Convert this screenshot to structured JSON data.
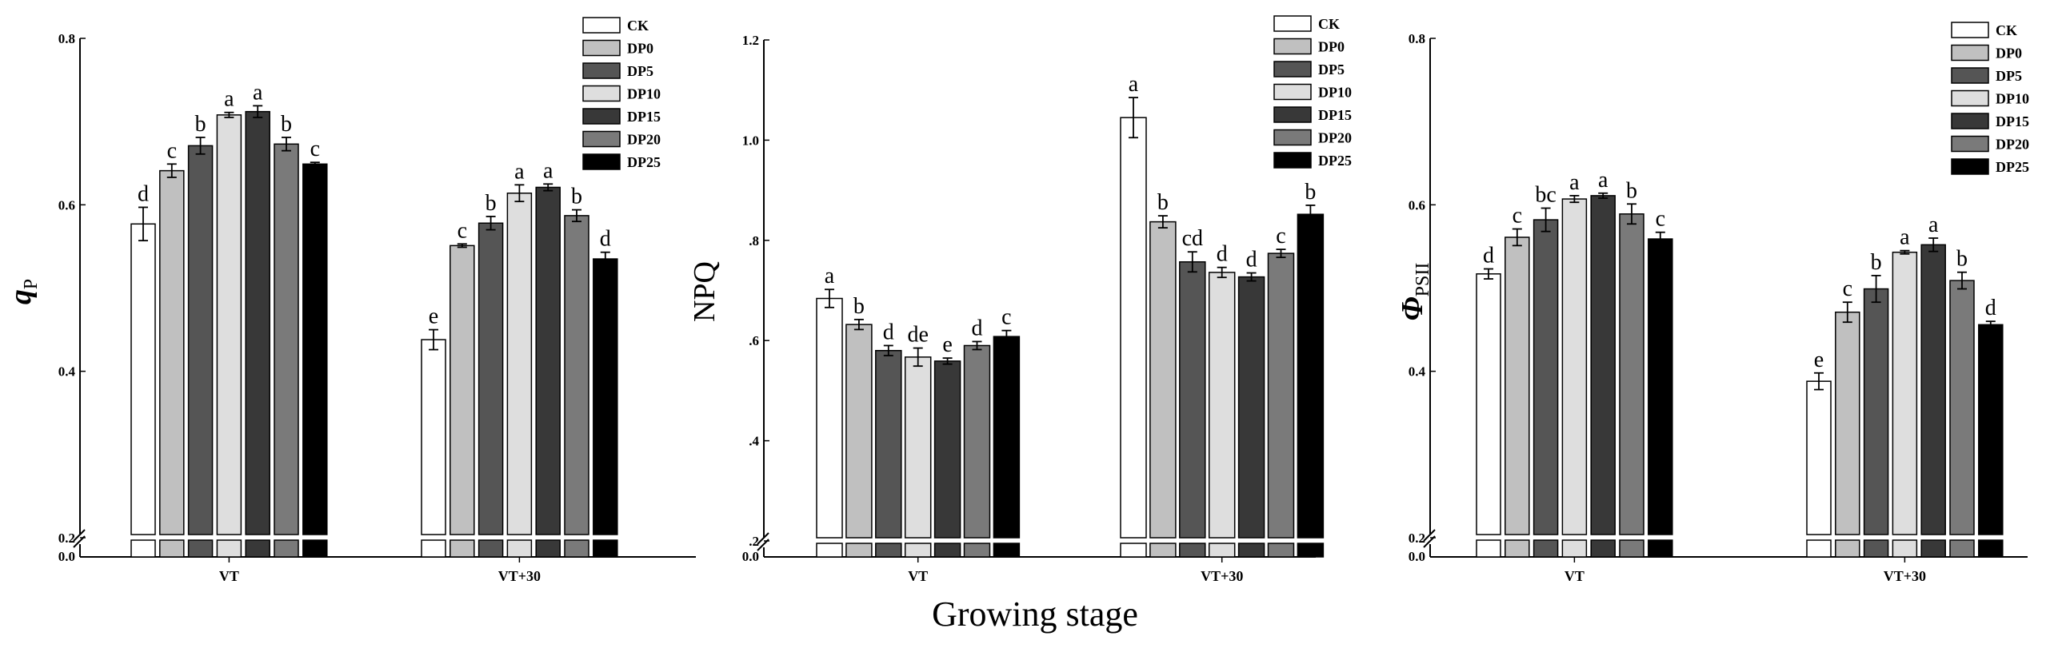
{
  "figure": {
    "xlabel": "Growing stage"
  },
  "legend": [
    "CK",
    "DP0",
    "DP5",
    "DP10",
    "DP15",
    "DP20",
    "DP25"
  ],
  "colors": {
    "CK": "#ffffff",
    "DP0": "#c0c0c0",
    "DP5": "#555555",
    "DP10": "#dedede",
    "DP15": "#383838",
    "DP20": "#7a7a7a",
    "DP25": "#000000"
  },
  "chart_data": [
    {
      "type": "bar",
      "ylabel": "qP",
      "ylabel_main": "q",
      "ylabel_sub": "P",
      "categories": [
        "VT",
        "VT+30"
      ],
      "ylim": [
        0.2,
        0.8
      ],
      "yticks": [
        0.2,
        0.4,
        0.6,
        0.8
      ],
      "ytick_labels": [
        "0.2",
        "0.4",
        "0.6",
        "0.8"
      ],
      "baseline_label": "0.0",
      "series": [
        {
          "name": "CK",
          "values": [
            0.577,
            0.438
          ],
          "errors": [
            0.02,
            0.012
          ],
          "letters": [
            "d",
            "e"
          ]
        },
        {
          "name": "DP0",
          "values": [
            0.641,
            0.551
          ],
          "errors": [
            0.008,
            0.002
          ],
          "letters": [
            "c",
            "c"
          ]
        },
        {
          "name": "DP5",
          "values": [
            0.671,
            0.578
          ],
          "errors": [
            0.01,
            0.008
          ],
          "letters": [
            "b",
            "b"
          ]
        },
        {
          "name": "DP10",
          "values": [
            0.708,
            0.614
          ],
          "errors": [
            0.003,
            0.01
          ],
          "letters": [
            "a",
            "a"
          ]
        },
        {
          "name": "DP15",
          "values": [
            0.712,
            0.621
          ],
          "errors": [
            0.007,
            0.004
          ],
          "letters": [
            "a",
            "a"
          ]
        },
        {
          "name": "DP20",
          "values": [
            0.673,
            0.587
          ],
          "errors": [
            0.008,
            0.007
          ],
          "letters": [
            "b",
            "b"
          ]
        },
        {
          "name": "DP25",
          "values": [
            0.649,
            0.535
          ],
          "errors": [
            0.002,
            0.008
          ],
          "letters": [
            "c",
            "d"
          ]
        }
      ]
    },
    {
      "type": "bar",
      "ylabel": "NPQ",
      "categories": [
        "VT",
        "VT+30"
      ],
      "ylim": [
        0.2,
        1.2
      ],
      "yticks": [
        0.2,
        0.4,
        0.6,
        0.8,
        1.0,
        1.2
      ],
      "ytick_labels": [
        ".2",
        ".4",
        ".6",
        ".8",
        "1.0",
        "1.2"
      ],
      "baseline_label": "0.0",
      "series": [
        {
          "name": "CK",
          "values": [
            0.684,
            1.045
          ],
          "errors": [
            0.018,
            0.04
          ],
          "letters": [
            "a",
            "a"
          ]
        },
        {
          "name": "DP0",
          "values": [
            0.632,
            0.837
          ],
          "errors": [
            0.01,
            0.012
          ],
          "letters": [
            "b",
            "b"
          ]
        },
        {
          "name": "DP5",
          "values": [
            0.58,
            0.757
          ],
          "errors": [
            0.01,
            0.02
          ],
          "letters": [
            "d",
            "cd"
          ]
        },
        {
          "name": "DP10",
          "values": [
            0.567,
            0.736
          ],
          "errors": [
            0.018,
            0.01
          ],
          "letters": [
            "de",
            "d"
          ]
        },
        {
          "name": "DP15",
          "values": [
            0.559,
            0.727
          ],
          "errors": [
            0.006,
            0.008
          ],
          "letters": [
            "e",
            "d"
          ]
        },
        {
          "name": "DP20",
          "values": [
            0.59,
            0.774
          ],
          "errors": [
            0.008,
            0.008
          ],
          "letters": [
            "d",
            "c"
          ]
        },
        {
          "name": "DP25",
          "values": [
            0.608,
            0.852
          ],
          "errors": [
            0.012,
            0.018
          ],
          "letters": [
            "c",
            "b"
          ]
        }
      ]
    },
    {
      "type": "bar",
      "ylabel": "ΦPSII",
      "ylabel_main": "Φ",
      "ylabel_sub": "PSII",
      "categories": [
        "VT",
        "VT+30"
      ],
      "ylim": [
        0.2,
        0.8
      ],
      "yticks": [
        0.2,
        0.4,
        0.6,
        0.8
      ],
      "ytick_labels": [
        "0.2",
        "0.4",
        "0.6",
        "0.8"
      ],
      "baseline_label": "0.0",
      "series": [
        {
          "name": "CK",
          "values": [
            0.517,
            0.388
          ],
          "errors": [
            0.006,
            0.01
          ],
          "letters": [
            "d",
            "e"
          ]
        },
        {
          "name": "DP0",
          "values": [
            0.561,
            0.471
          ],
          "errors": [
            0.01,
            0.012
          ],
          "letters": [
            "c",
            "c"
          ]
        },
        {
          "name": "DP5",
          "values": [
            0.582,
            0.499
          ],
          "errors": [
            0.014,
            0.016
          ],
          "letters": [
            "bc",
            "b"
          ]
        },
        {
          "name": "DP10",
          "values": [
            0.607,
            0.543
          ],
          "errors": [
            0.004,
            0.002
          ],
          "letters": [
            "a",
            "a"
          ]
        },
        {
          "name": "DP15",
          "values": [
            0.611,
            0.552
          ],
          "errors": [
            0.003,
            0.008
          ],
          "letters": [
            "a",
            "a"
          ]
        },
        {
          "name": "DP20",
          "values": [
            0.589,
            0.509
          ],
          "errors": [
            0.012,
            0.01
          ],
          "letters": [
            "b",
            "b"
          ]
        },
        {
          "name": "DP25",
          "values": [
            0.559,
            0.456
          ],
          "errors": [
            0.008,
            0.004
          ],
          "letters": [
            "c",
            "d"
          ]
        }
      ]
    }
  ]
}
